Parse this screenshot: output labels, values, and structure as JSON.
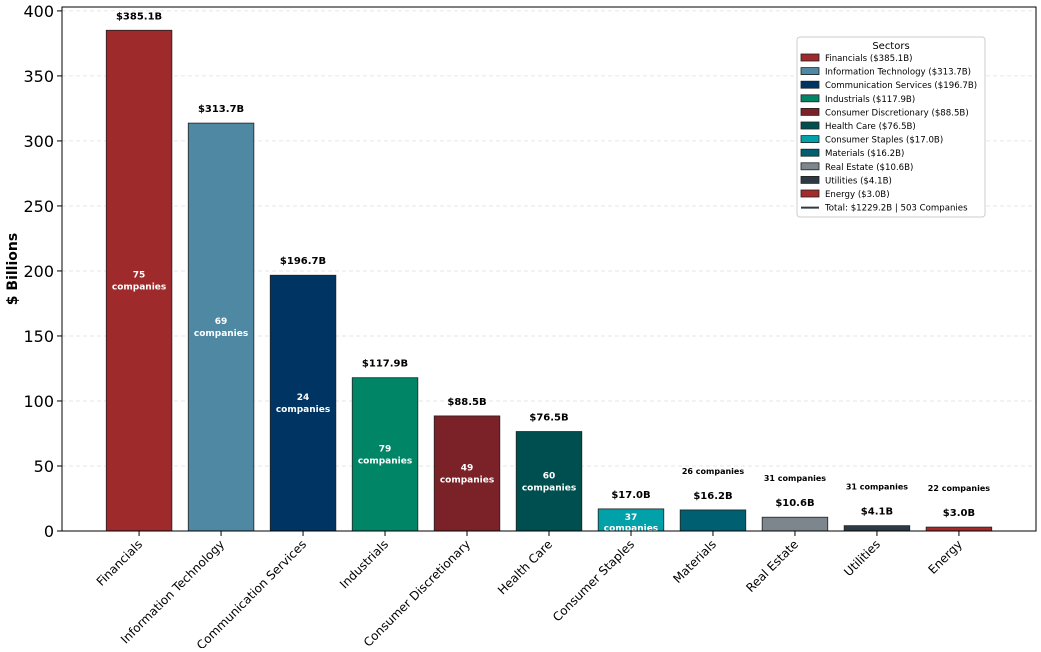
{
  "chart_data": {
    "type": "bar",
    "title": "",
    "xlabel": "",
    "ylabel": "$ Billions",
    "ylim": [
      0,
      403
    ],
    "yticks": [
      0,
      50,
      100,
      150,
      200,
      250,
      300,
      350,
      400
    ],
    "grid": "horizontal-dashed",
    "categories": [
      "Financials",
      "Information Technology",
      "Communication Services",
      "Industrials",
      "Consumer Discretionary",
      "Health Care",
      "Consumer Staples",
      "Materials",
      "Real Estate",
      "Utilities",
      "Energy"
    ],
    "values": [
      385.1,
      313.7,
      196.7,
      117.9,
      88.5,
      76.5,
      17.0,
      16.2,
      10.6,
      4.1,
      3.0
    ],
    "value_labels": [
      "$385.1B",
      "$313.7B",
      "$196.7B",
      "$117.9B",
      "$88.5B",
      "$76.5B",
      "$17.0B",
      "$16.2B",
      "$10.6B",
      "$4.1B",
      "$3.0B"
    ],
    "companies": [
      75,
      69,
      24,
      79,
      49,
      60,
      37,
      26,
      31,
      31,
      22
    ],
    "company_labels": [
      "75 companies",
      "69 companies",
      "24 companies",
      "79 companies",
      "49 companies",
      "60 companies",
      "37 companies",
      "26 companies",
      "31 companies",
      "31 companies",
      "22 companies"
    ],
    "colors": [
      "#9e2a2b",
      "#4e88a2",
      "#003563",
      "#008566",
      "#7b2228",
      "#004f50",
      "#00a1a9",
      "#005f70",
      "#7d868c",
      "#2d3a45",
      "#a52a2a"
    ],
    "legend": {
      "title": "Sectors",
      "placement": "top-right",
      "entries": [
        "Financials ($385.1B)",
        "Information Technology ($313.7B)",
        "Communication Services ($196.7B)",
        "Industrials ($117.9B)",
        "Consumer Discretionary ($88.5B)",
        "Health Care ($76.5B)",
        "Consumer Staples ($17.0B)",
        "Materials ($16.2B)",
        "Real Estate ($10.6B)",
        "Utilities ($4.1B)",
        "Energy ($3.0B)"
      ],
      "total": "Total: $1229.2B | 503 Companies"
    }
  }
}
